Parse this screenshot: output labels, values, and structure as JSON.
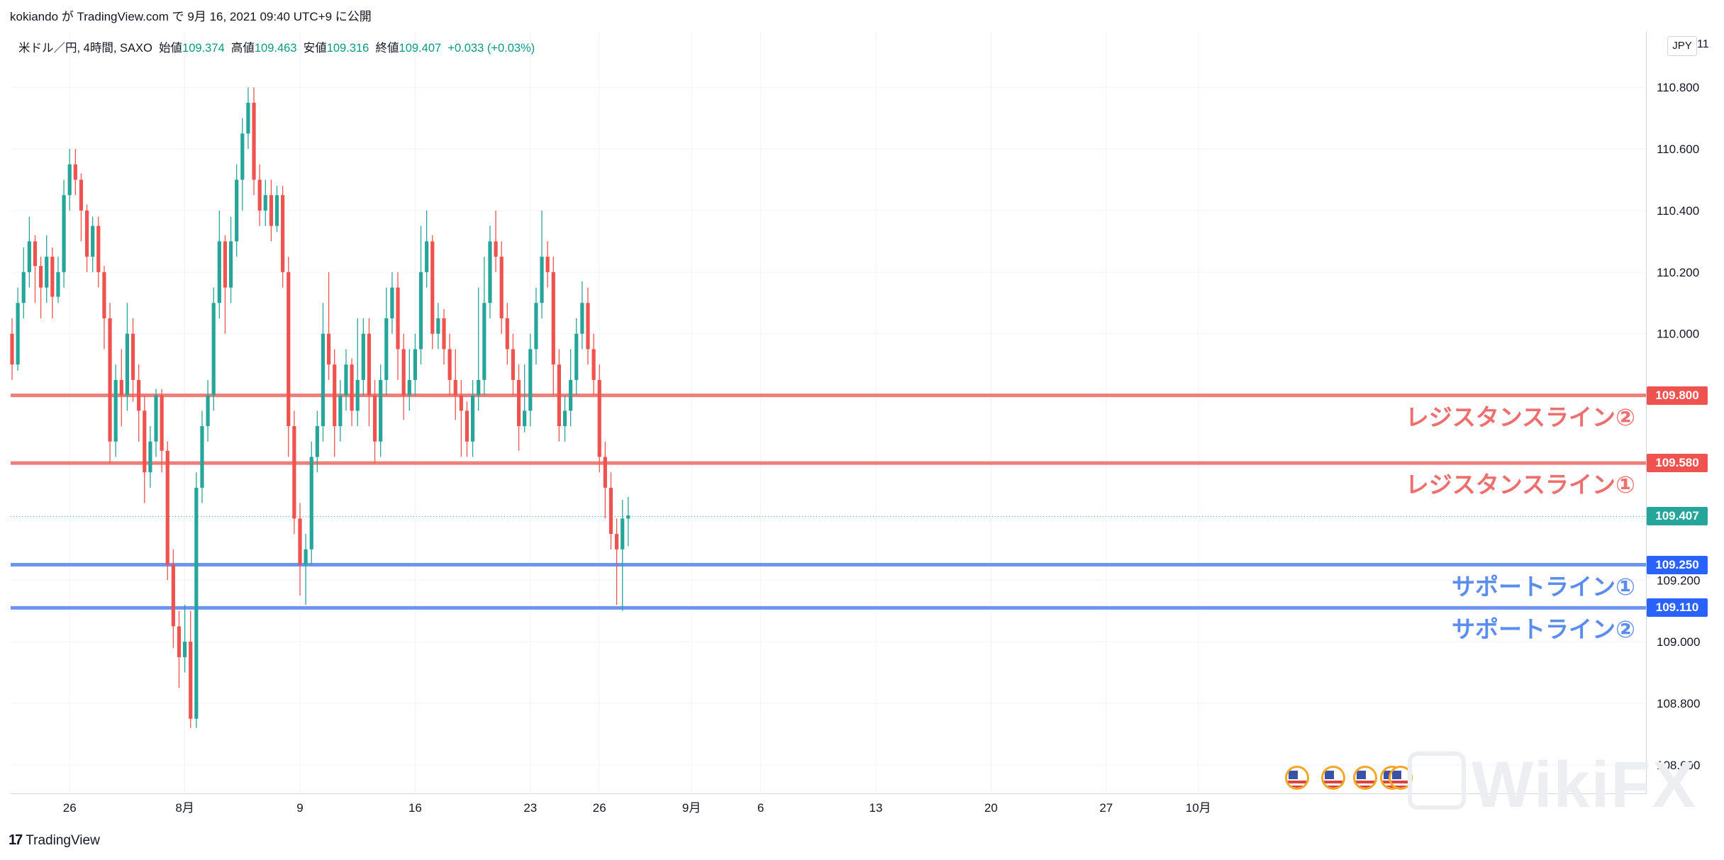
{
  "header": {
    "publish_info": "kokiando が TradingView.com で 9月 16, 2021 09:40 UTC+9 に公開"
  },
  "legend": {
    "symbol": "米ドル／円, 4時間, SAXO",
    "open_label": "始値",
    "open_value": "109.374",
    "high_label": "高値",
    "high_value": "109.463",
    "low_label": "安値",
    "low_value": "109.316",
    "close_label": "終値",
    "close_value": "109.407",
    "change": "+0.033 (+0.03%)"
  },
  "axis": {
    "currency": "JPY",
    "partial_top_label": "11"
  },
  "brand": {
    "name": "TradingView"
  },
  "watermark": {
    "text": "WikiFX"
  },
  "chart_data": {
    "type": "candlestick",
    "ylim": [
      108.51,
      110.98
    ],
    "y_ticks": [
      "110.800",
      "110.600",
      "110.400",
      "110.200",
      "110.000",
      "109.200",
      "109.000",
      "108.800",
      "108.600"
    ],
    "x_ticks": [
      {
        "label": "26",
        "bar": 10
      },
      {
        "label": "8月",
        "bar": 30
      },
      {
        "label": "9",
        "bar": 50
      },
      {
        "label": "16",
        "bar": 70
      },
      {
        "label": "23",
        "bar": 90
      },
      {
        "label": "26",
        "bar": 102
      },
      {
        "label": "9月",
        "bar": 118
      },
      {
        "label": "6",
        "bar": 130
      },
      {
        "label": "13",
        "bar": 150
      },
      {
        "label": "20",
        "bar": 170
      },
      {
        "label": "27",
        "bar": 190
      },
      {
        "label": "10月",
        "bar": 206
      }
    ],
    "last_price": {
      "value": 109.407,
      "label": "109.407",
      "color": "#26a69a"
    },
    "horizontal_lines": [
      {
        "value": 109.8,
        "label": "109.800",
        "text": "レジスタンスライン②",
        "color": "#ef7d78",
        "tag_color": "#ef5350"
      },
      {
        "value": 109.58,
        "label": "109.580",
        "text": "レジスタンスライン①",
        "color": "#ef7d78",
        "tag_color": "#ef5350"
      },
      {
        "value": 109.25,
        "label": "109.250",
        "text": "サポートライン①",
        "color": "#6d95ef",
        "tag_color": "#2962ff"
      },
      {
        "value": 109.11,
        "label": "109.110",
        "text": "サポートライン②",
        "color": "#6d95ef",
        "tag_color": "#2962ff"
      }
    ],
    "candles": [
      [
        110.0,
        109.9,
        110.05,
        109.85
      ],
      [
        109.9,
        110.1,
        110.15,
        109.88
      ],
      [
        110.1,
        110.2,
        110.28,
        110.05
      ],
      [
        110.2,
        110.3,
        110.38,
        110.15
      ],
      [
        110.3,
        110.22,
        110.32,
        110.1
      ],
      [
        110.22,
        110.15,
        110.25,
        110.05
      ],
      [
        110.15,
        110.25,
        110.32,
        110.1
      ],
      [
        110.25,
        110.12,
        110.28,
        110.05
      ],
      [
        110.12,
        110.2,
        110.25,
        110.1
      ],
      [
        110.2,
        110.45,
        110.5,
        110.15
      ],
      [
        110.45,
        110.55,
        110.6,
        110.4
      ],
      [
        110.55,
        110.5,
        110.6,
        110.45
      ],
      [
        110.5,
        110.4,
        110.52,
        110.3
      ],
      [
        110.4,
        110.25,
        110.42,
        110.2
      ],
      [
        110.25,
        110.35,
        110.38,
        110.2
      ],
      [
        110.35,
        110.2,
        110.38,
        110.15
      ],
      [
        110.2,
        110.05,
        110.22,
        109.95
      ],
      [
        110.05,
        109.65,
        110.1,
        109.58
      ],
      [
        109.65,
        109.85,
        109.9,
        109.6
      ],
      [
        109.85,
        109.8,
        109.95,
        109.7
      ],
      [
        109.8,
        110.0,
        110.1,
        109.75
      ],
      [
        110.0,
        109.85,
        110.05,
        109.78
      ],
      [
        109.85,
        109.75,
        109.9,
        109.65
      ],
      [
        109.75,
        109.55,
        109.8,
        109.45
      ],
      [
        109.55,
        109.65,
        109.7,
        109.5
      ],
      [
        109.65,
        109.8,
        109.82,
        109.6
      ],
      [
        109.8,
        109.62,
        109.82,
        109.55
      ],
      [
        109.62,
        109.25,
        109.65,
        109.2
      ],
      [
        109.25,
        109.05,
        109.3,
        108.98
      ],
      [
        109.05,
        108.95,
        109.1,
        108.85
      ],
      [
        108.95,
        109.0,
        109.12,
        108.9
      ],
      [
        109.0,
        108.75,
        109.1,
        108.72
      ],
      [
        108.75,
        109.5,
        109.55,
        108.72
      ],
      [
        109.5,
        109.7,
        109.75,
        109.45
      ],
      [
        109.7,
        109.8,
        109.85,
        109.65
      ],
      [
        109.8,
        110.1,
        110.15,
        109.75
      ],
      [
        110.1,
        110.3,
        110.4,
        110.05
      ],
      [
        110.3,
        110.15,
        110.32,
        110.0
      ],
      [
        110.15,
        110.3,
        110.38,
        110.1
      ],
      [
        110.3,
        110.5,
        110.55,
        110.25
      ],
      [
        110.5,
        110.65,
        110.7,
        110.4
      ],
      [
        110.65,
        110.75,
        110.8,
        110.6
      ],
      [
        110.75,
        110.5,
        110.8,
        110.45
      ],
      [
        110.5,
        110.4,
        110.55,
        110.35
      ],
      [
        110.4,
        110.45,
        110.5,
        110.35
      ],
      [
        110.45,
        110.35,
        110.5,
        110.3
      ],
      [
        110.35,
        110.45,
        110.48,
        110.33
      ],
      [
        110.45,
        110.2,
        110.48,
        110.15
      ],
      [
        110.2,
        109.7,
        110.25,
        109.6
      ],
      [
        109.7,
        109.4,
        109.75,
        109.35
      ],
      [
        109.4,
        109.25,
        109.45,
        109.15
      ],
      [
        109.25,
        109.3,
        109.35,
        109.12
      ],
      [
        109.3,
        109.6,
        109.65,
        109.25
      ],
      [
        109.6,
        109.7,
        109.75,
        109.55
      ],
      [
        109.7,
        110.0,
        110.1,
        109.65
      ],
      [
        110.0,
        109.9,
        110.2,
        109.85
      ],
      [
        109.9,
        109.7,
        109.95,
        109.6
      ],
      [
        109.7,
        109.8,
        109.85,
        109.65
      ],
      [
        109.8,
        109.9,
        109.95,
        109.75
      ],
      [
        109.9,
        109.75,
        109.92,
        109.7
      ],
      [
        109.75,
        109.85,
        110.05,
        109.7
      ],
      [
        109.85,
        110.0,
        110.05,
        109.8
      ],
      [
        110.0,
        109.8,
        110.05,
        109.7
      ],
      [
        109.8,
        109.65,
        109.85,
        109.58
      ],
      [
        109.65,
        109.85,
        109.9,
        109.6
      ],
      [
        109.85,
        110.05,
        110.15,
        109.8
      ],
      [
        110.05,
        110.15,
        110.2,
        110.0
      ],
      [
        110.15,
        109.95,
        110.2,
        109.85
      ],
      [
        109.95,
        109.8,
        110.0,
        109.72
      ],
      [
        109.8,
        109.85,
        109.95,
        109.75
      ],
      [
        109.85,
        109.95,
        110.0,
        109.8
      ],
      [
        109.95,
        110.2,
        110.35,
        109.9
      ],
      [
        110.2,
        110.3,
        110.4,
        110.15
      ],
      [
        110.3,
        110.0,
        110.32,
        109.95
      ],
      [
        110.0,
        110.05,
        110.1,
        109.95
      ],
      [
        110.05,
        109.95,
        110.08,
        109.9
      ],
      [
        109.95,
        109.85,
        110.0,
        109.8
      ],
      [
        109.85,
        109.8,
        109.95,
        109.72
      ],
      [
        109.8,
        109.75,
        109.85,
        109.6
      ],
      [
        109.75,
        109.65,
        109.78,
        109.6
      ],
      [
        109.65,
        109.8,
        109.85,
        109.6
      ],
      [
        109.8,
        109.85,
        110.15,
        109.75
      ],
      [
        109.85,
        110.1,
        110.25,
        109.8
      ],
      [
        110.1,
        110.3,
        110.35,
        110.05
      ],
      [
        110.3,
        110.25,
        110.4,
        110.2
      ],
      [
        110.25,
        110.05,
        110.3,
        110.0
      ],
      [
        110.05,
        109.95,
        110.1,
        109.9
      ],
      [
        109.95,
        109.85,
        110.0,
        109.8
      ],
      [
        109.85,
        109.7,
        109.9,
        109.62
      ],
      [
        109.7,
        109.75,
        109.9,
        109.68
      ],
      [
        109.75,
        109.95,
        110.0,
        109.7
      ],
      [
        109.95,
        110.1,
        110.15,
        109.9
      ],
      [
        110.1,
        110.25,
        110.4,
        110.05
      ],
      [
        110.25,
        110.2,
        110.3,
        110.15
      ],
      [
        110.2,
        109.9,
        110.25,
        109.8
      ],
      [
        109.9,
        109.7,
        109.95,
        109.65
      ],
      [
        109.7,
        109.75,
        109.8,
        109.65
      ],
      [
        109.75,
        109.85,
        109.95,
        109.7
      ],
      [
        109.85,
        110.0,
        110.05,
        109.8
      ],
      [
        110.0,
        110.1,
        110.17,
        109.95
      ],
      [
        110.1,
        109.95,
        110.15,
        109.9
      ],
      [
        109.95,
        109.85,
        110.0,
        109.8
      ],
      [
        109.85,
        109.6,
        109.9,
        109.55
      ],
      [
        109.6,
        109.5,
        109.65,
        109.4
      ],
      [
        109.5,
        109.35,
        109.55,
        109.3
      ],
      [
        109.35,
        109.3,
        109.4,
        109.12
      ],
      [
        109.3,
        109.4,
        109.46,
        109.1
      ],
      [
        109.4,
        109.41,
        109.47,
        109.31
      ]
    ]
  }
}
